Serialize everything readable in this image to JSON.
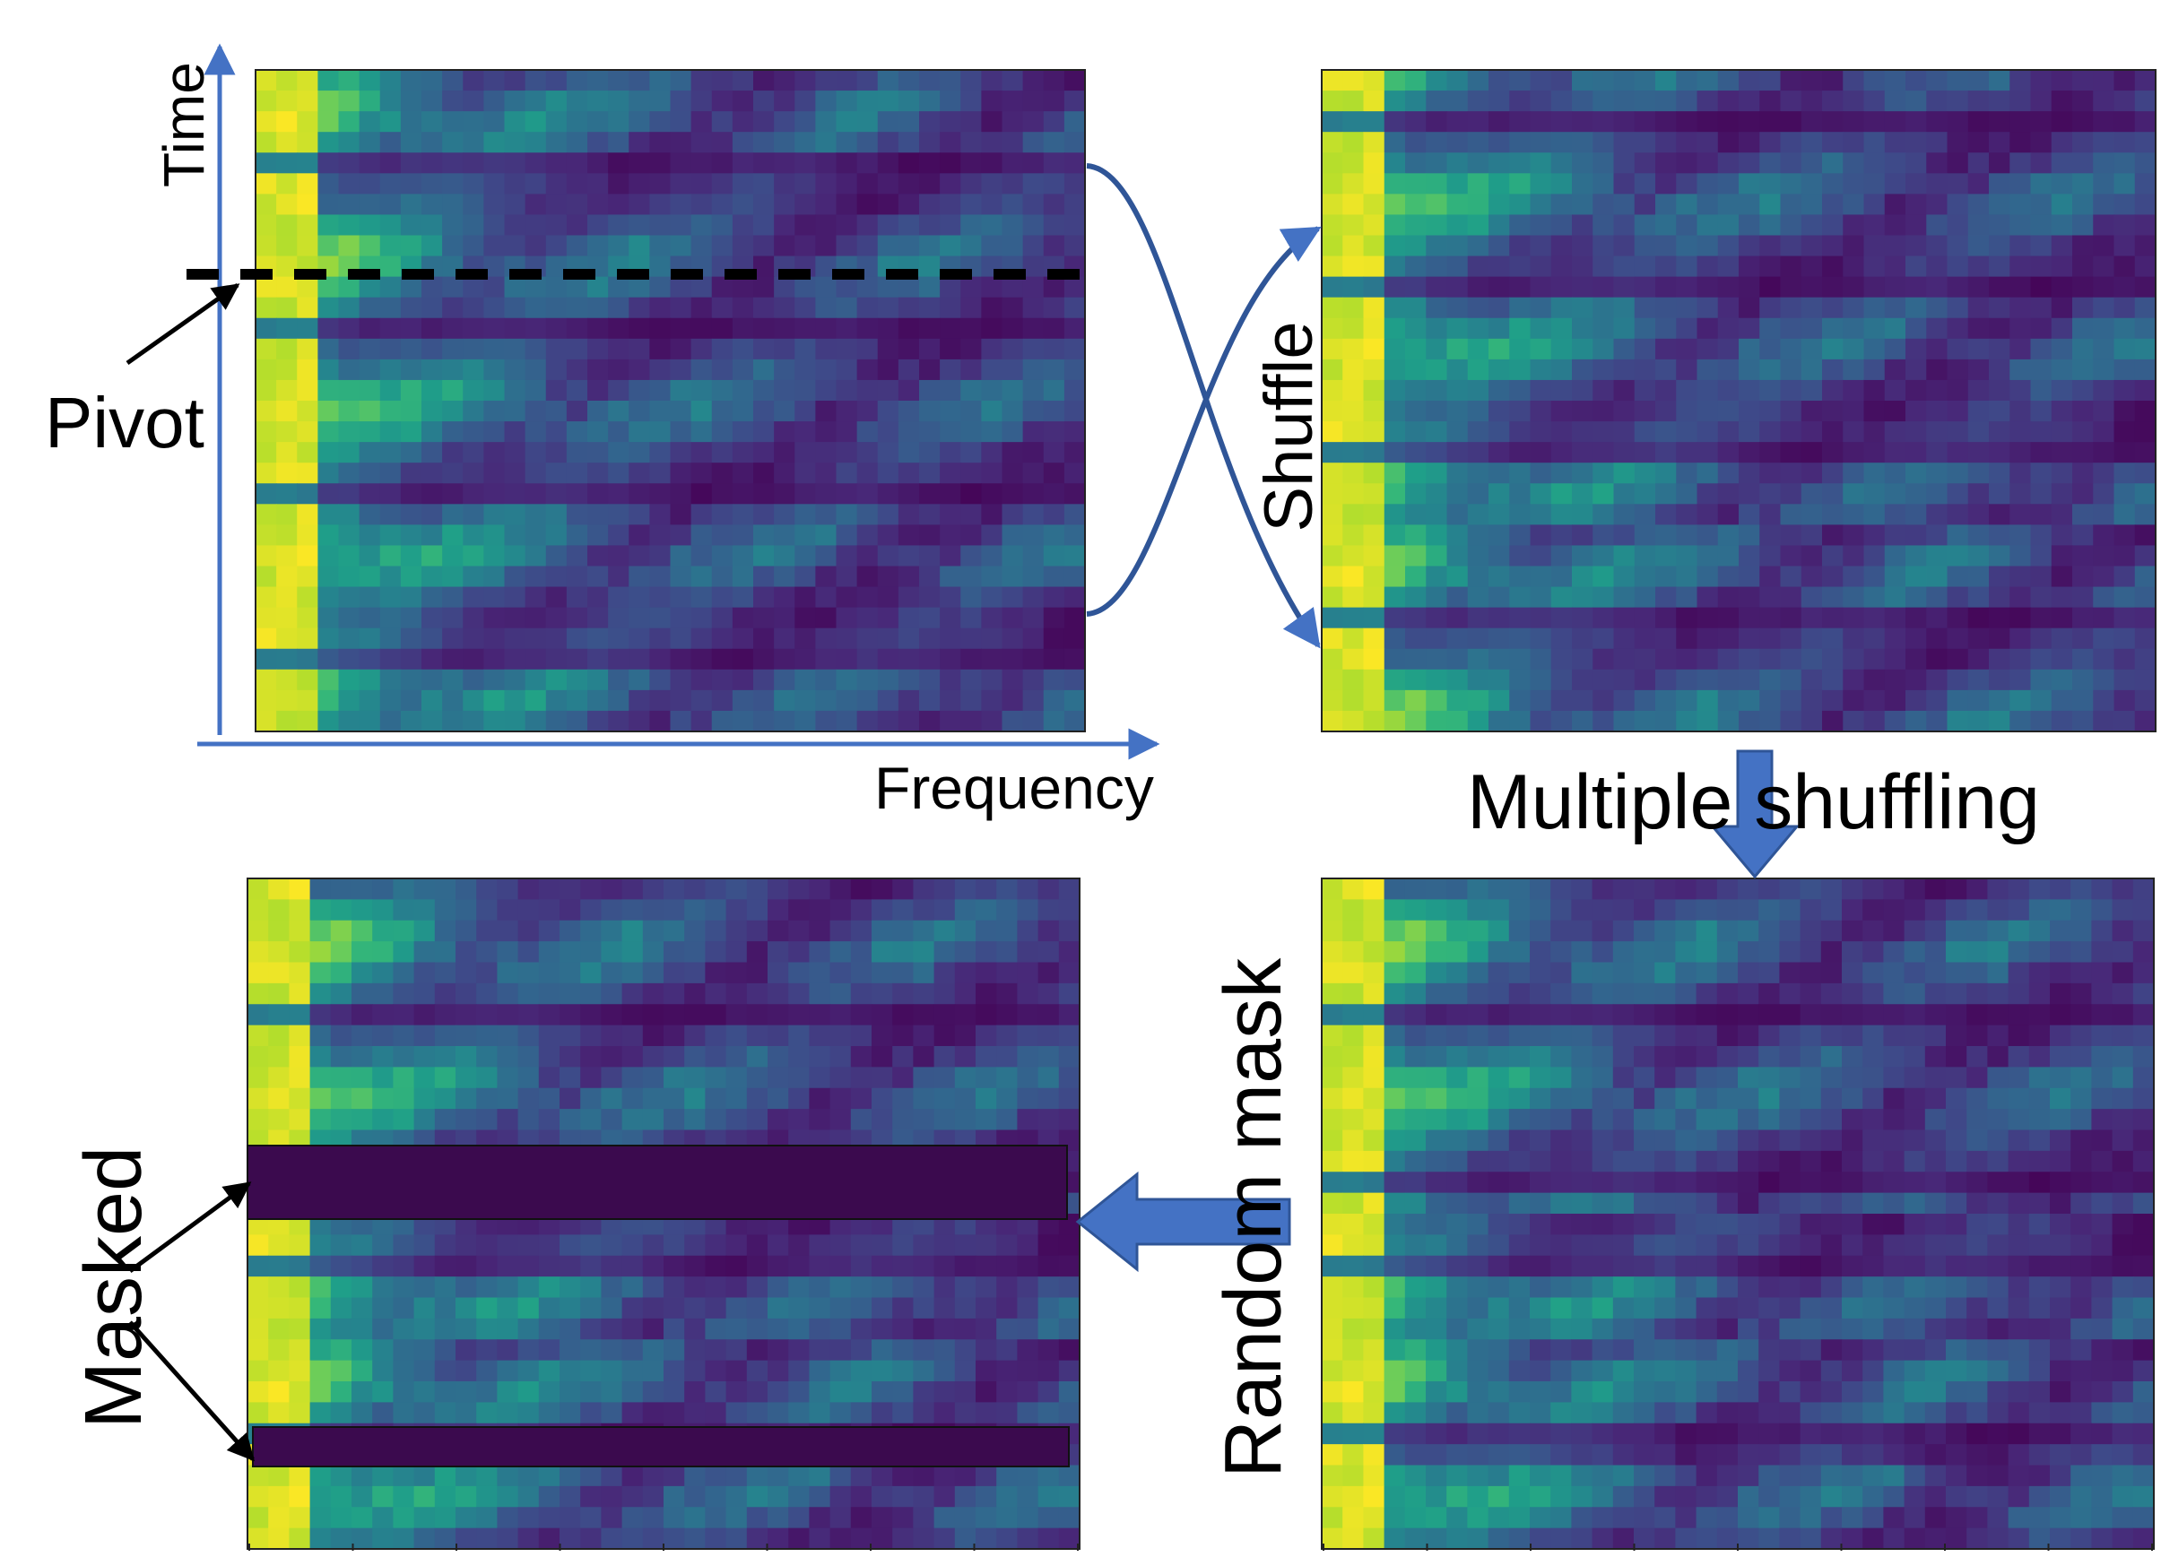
{
  "labels": {
    "time": "Time",
    "pivot": "Pivot",
    "frequency": "Frequency",
    "shuffle": "Shuffle",
    "multiple_shuffling": "Multiple shuffling",
    "random_mask": "Random mask",
    "masked": "Masked"
  },
  "colors": {
    "axis": "#4472c4",
    "curve": "#2f5597",
    "block_arrow": "#4472c4",
    "mask": "#3b0a4e",
    "pivot_line": "#000000",
    "viridis_low": "#440154",
    "viridis_high": "#fde725"
  }
}
